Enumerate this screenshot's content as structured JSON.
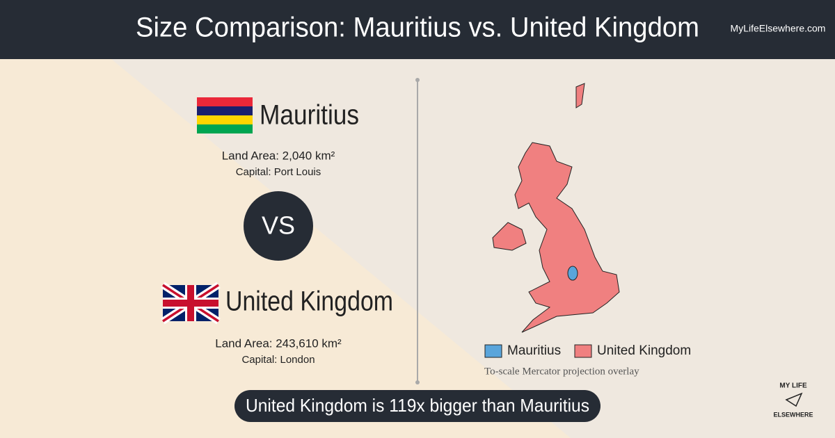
{
  "header": {
    "title": "Size Comparison: Mauritius vs. United Kingdom",
    "site": "MyLifeElsewhere.com"
  },
  "countries": [
    {
      "name": "Mauritius",
      "area": "Land Area: 2,040 km²",
      "capital": "Capital: Port Louis"
    },
    {
      "name": "United Kingdom",
      "area": "Land Area: 243,610 km²",
      "capital": "Capital: London"
    }
  ],
  "vs": "VS",
  "map": {
    "legend": [
      {
        "name": "Mauritius",
        "color": "#5aa5db"
      },
      {
        "name": "United Kingdom",
        "color": "#f08080"
      }
    ],
    "note": "To-scale Mercator projection overlay"
  },
  "banner": "United Kingdom is 119x bigger than Mauritius",
  "logo": {
    "line1": "MY LIFE",
    "line2": "ELSEWHERE"
  }
}
